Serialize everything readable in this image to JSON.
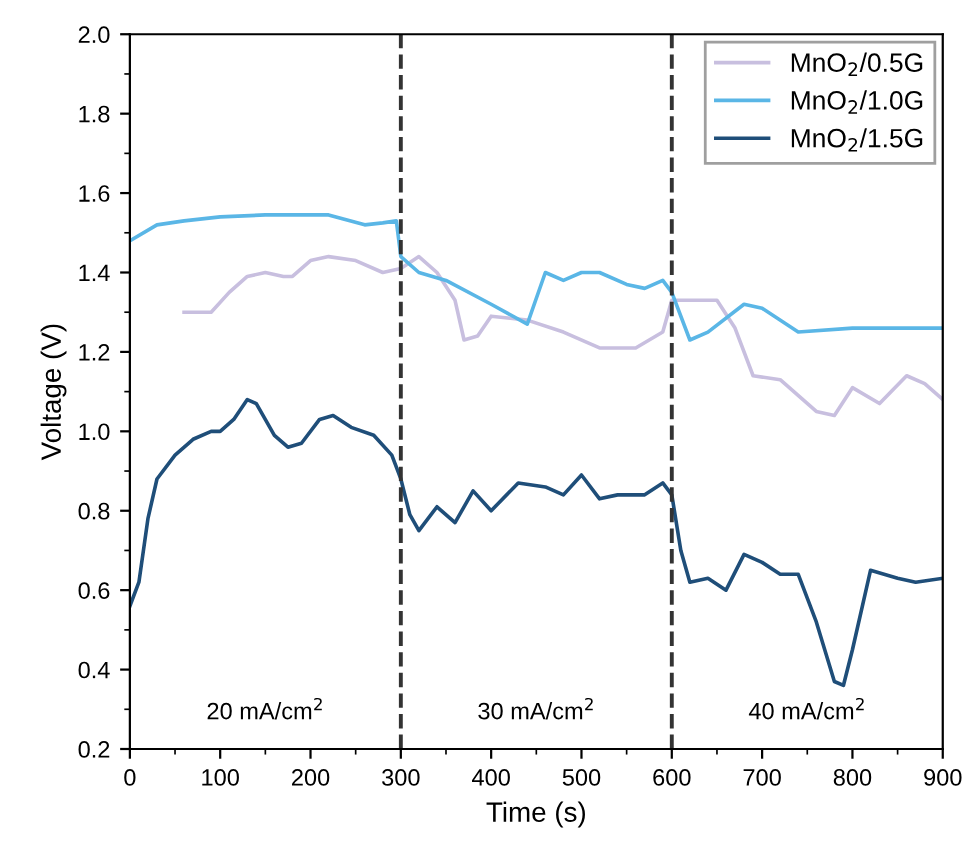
{
  "chart_data": {
    "type": "line",
    "xlabel": "Time (s)",
    "ylabel": "Voltage (V)",
    "xlim": [
      0,
      900
    ],
    "ylim": [
      0.2,
      2.0
    ],
    "xticks": [
      0,
      100,
      200,
      300,
      400,
      500,
      600,
      700,
      800,
      900
    ],
    "yticks": [
      {
        "value": 0.2,
        "label": "0.2"
      },
      {
        "value": 0.4,
        "label": "0.4"
      },
      {
        "value": 0.6,
        "label": "0.6"
      },
      {
        "value": 0.8,
        "label": "0.8"
      },
      {
        "value": 1.0,
        "label": "1.0"
      },
      {
        "value": 1.2,
        "label": "1.2"
      },
      {
        "value": 1.4,
        "label": "1.4"
      },
      {
        "value": 1.6,
        "label": "1.6"
      },
      {
        "value": 1.8,
        "label": "1.8"
      },
      {
        "value": 2.0,
        "label": "2.0"
      }
    ],
    "grid": false,
    "legend": "top right",
    "marker": "none",
    "line_style": "solid",
    "series": [
      {
        "name": "MnO$_{2}$/0.5G",
        "color": "#c8bfdf",
        "x": [
          60,
          90,
          110,
          130,
          150,
          170,
          180,
          200,
          220,
          250,
          280,
          300,
          320,
          340,
          360,
          370,
          385,
          400,
          440,
          480,
          520,
          560,
          590,
          600,
          620,
          650,
          670,
          690,
          720,
          760,
          780,
          800,
          830,
          860,
          880,
          900
        ],
        "values": [
          1.3,
          1.3,
          1.35,
          1.39,
          1.4,
          1.39,
          1.39,
          1.43,
          1.44,
          1.43,
          1.4,
          1.41,
          1.44,
          1.4,
          1.33,
          1.23,
          1.24,
          1.29,
          1.28,
          1.25,
          1.21,
          1.21,
          1.25,
          1.33,
          1.33,
          1.33,
          1.26,
          1.14,
          1.13,
          1.05,
          1.04,
          1.11,
          1.07,
          1.14,
          1.12,
          1.08
        ]
      },
      {
        "name": "MnO$_{2}$/1.0G",
        "color": "#5ab6e6",
        "x": [
          0,
          30,
          60,
          100,
          150,
          220,
          260,
          280,
          295,
          300,
          320,
          350,
          400,
          440,
          460,
          480,
          500,
          520,
          550,
          570,
          590,
          600,
          620,
          640,
          680,
          700,
          740,
          800,
          900
        ],
        "values": [
          1.48,
          1.52,
          1.53,
          1.54,
          1.545,
          1.545,
          1.52,
          1.525,
          1.53,
          1.44,
          1.4,
          1.38,
          1.32,
          1.27,
          1.4,
          1.38,
          1.4,
          1.4,
          1.37,
          1.36,
          1.38,
          1.35,
          1.23,
          1.25,
          1.32,
          1.31,
          1.25,
          1.26,
          1.26
        ]
      },
      {
        "name": "MnO$_{2}$/1.5G",
        "color": "#1f4e79",
        "x": [
          0,
          10,
          20,
          30,
          50,
          70,
          90,
          100,
          115,
          130,
          140,
          160,
          175,
          190,
          210,
          225,
          245,
          270,
          290,
          300,
          310,
          320,
          340,
          360,
          380,
          400,
          430,
          460,
          480,
          500,
          520,
          540,
          570,
          590,
          600,
          610,
          620,
          640,
          660,
          680,
          700,
          720,
          740,
          760,
          780,
          790,
          800,
          820,
          850,
          870,
          900
        ],
        "values": [
          0.56,
          0.62,
          0.78,
          0.88,
          0.94,
          0.98,
          1.0,
          1.0,
          1.03,
          1.08,
          1.07,
          0.99,
          0.96,
          0.97,
          1.03,
          1.04,
          1.01,
          0.99,
          0.94,
          0.88,
          0.79,
          0.75,
          0.81,
          0.77,
          0.85,
          0.8,
          0.87,
          0.86,
          0.84,
          0.89,
          0.83,
          0.84,
          0.84,
          0.87,
          0.84,
          0.7,
          0.62,
          0.63,
          0.6,
          0.69,
          0.67,
          0.64,
          0.64,
          0.52,
          0.37,
          0.36,
          0.45,
          0.65,
          0.63,
          0.62,
          0.63
        ]
      }
    ],
    "ref_lines": [
      {
        "axis": "x",
        "value": 300,
        "color": "#333333",
        "line_style": "dashed"
      },
      {
        "axis": "x",
        "value": 600,
        "color": "#333333",
        "line_style": "dashed"
      }
    ],
    "annotations": [
      "20 mA/cm$^{2}$",
      "30 mA/cm$^{2}$",
      "40 mA/cm$^{2}$"
    ]
  }
}
